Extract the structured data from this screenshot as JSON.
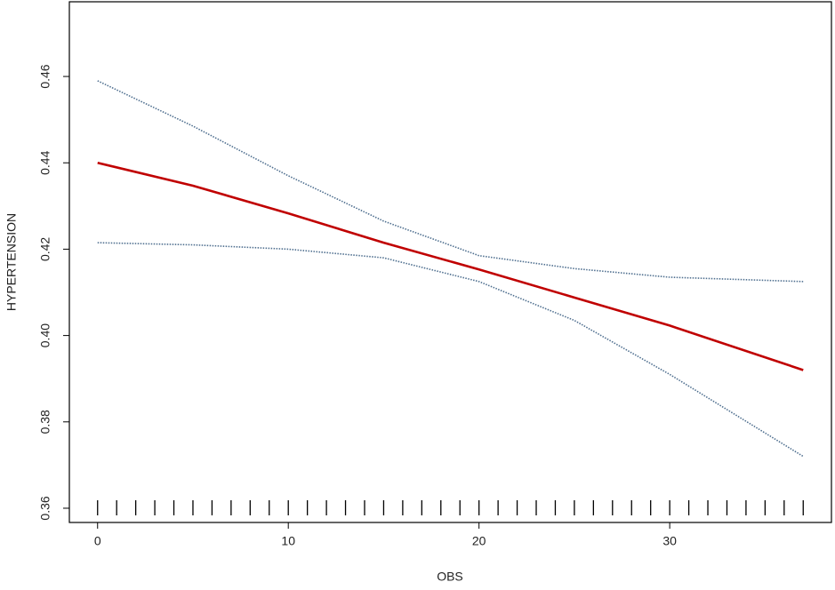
{
  "chart_data": {
    "type": "line",
    "x_label": "OBS",
    "y_label": "HYPERTENSION",
    "x": [
      0,
      5,
      10,
      15,
      20,
      25,
      30,
      37
    ],
    "series": [
      {
        "color": "#c00000",
        "style": "solid",
        "values": [
          0.44,
          0.4347,
          0.4283,
          0.4215,
          0.4153,
          0.4088,
          0.4023,
          0.392
        ]
      },
      {
        "color": "#4f6f8f",
        "style": "dotted",
        "values": [
          0.459,
          0.4485,
          0.437,
          0.4265,
          0.4185,
          0.4155,
          0.4135,
          0.4125
        ]
      },
      {
        "color": "#4f6f8f",
        "style": "dotted",
        "values": [
          0.4215,
          0.421,
          0.42,
          0.418,
          0.4125,
          0.4035,
          0.391,
          0.372
        ]
      }
    ],
    "rug": [
      0,
      1,
      2,
      3,
      4,
      5,
      6,
      7,
      8,
      9,
      10,
      11,
      12,
      13,
      14,
      15,
      16,
      17,
      18,
      19,
      20,
      21,
      22,
      23,
      24,
      25,
      26,
      27,
      28,
      29,
      30,
      31,
      32,
      33,
      34,
      35,
      36,
      37
    ],
    "xlim": [
      -1.48,
      38.48
    ],
    "xticks": [
      0,
      10,
      20,
      30
    ],
    "ylim": [
      0.3567,
      0.4773
    ],
    "yticks": [
      0.36,
      0.38,
      {
        "value": 0.4,
        "label": "0.40"
      },
      0.42,
      0.44,
      0.46
    ]
  }
}
